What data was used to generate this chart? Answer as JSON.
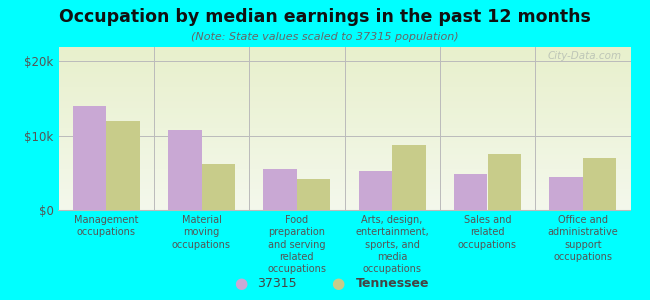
{
  "title": "Occupation by median earnings in the past 12 months",
  "subtitle": "(Note: State values scaled to 37315 population)",
  "categories": [
    "Management\noccupations",
    "Material\nmoving\noccupations",
    "Food\npreparation\nand serving\nrelated\noccupations",
    "Arts, design,\nentertainment,\nsports, and\nmedia\noccupations",
    "Sales and\nrelated\noccupations",
    "Office and\nadministrative\nsupport\noccupations"
  ],
  "values_37315": [
    14000,
    10800,
    5500,
    5200,
    4800,
    4400
  ],
  "values_tennessee": [
    12000,
    6200,
    4200,
    8800,
    7500,
    7000
  ],
  "color_37315": "#c9a8d4",
  "color_tennessee": "#c8cc8a",
  "background_color": "#00ffff",
  "ylim": [
    0,
    22000
  ],
  "yticks": [
    0,
    10000,
    20000
  ],
  "ytick_labels": [
    "$0",
    "$10k",
    "$20k"
  ],
  "bar_width": 0.35,
  "legend_labels": [
    "37315",
    "Tennessee"
  ],
  "watermark": "City-Data.com",
  "grad_top": "#e8f0cc",
  "grad_bottom": "#f4f8ec"
}
